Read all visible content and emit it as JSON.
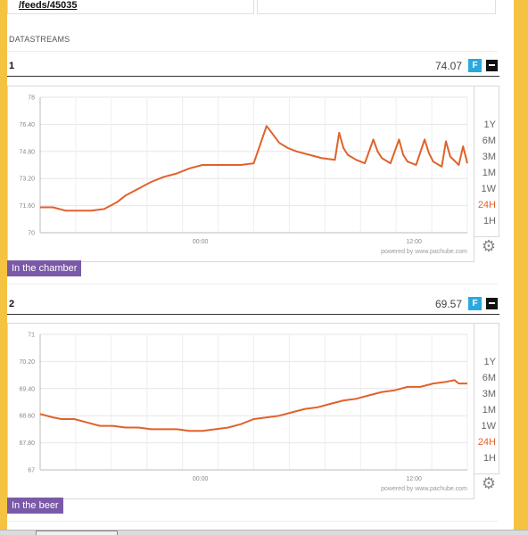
{
  "feed": {
    "link": "/feeds/45035"
  },
  "section_title": "DATASTREAMS",
  "range_options": [
    "1Y",
    "6M",
    "3M",
    "1M",
    "1W",
    "24H",
    "1H"
  ],
  "active_range": "24H",
  "powered_by": "powered by www.pachube.com",
  "f_label": "F",
  "datastreams": [
    {
      "id": "1",
      "value": "74.07",
      "tag": "In the chamber",
      "chart_data": {
        "type": "line",
        "y_ticks": [
          "78",
          "76.40",
          "74.80",
          "73.20",
          "71.60",
          "70"
        ],
        "ylim": [
          70,
          78
        ],
        "x_ticks": [
          {
            "label": "00:00",
            "x": 0.375
          },
          {
            "label": "12:00",
            "x": 0.875
          }
        ],
        "color": "#e0622b",
        "x": [
          0,
          0.03,
          0.06,
          0.09,
          0.12,
          0.15,
          0.18,
          0.2,
          0.23,
          0.26,
          0.29,
          0.32,
          0.35,
          0.38,
          0.41,
          0.44,
          0.47,
          0.5,
          0.53,
          0.545,
          0.56,
          0.58,
          0.6,
          0.63,
          0.66,
          0.69,
          0.7,
          0.71,
          0.72,
          0.74,
          0.76,
          0.78,
          0.79,
          0.8,
          0.82,
          0.84,
          0.85,
          0.86,
          0.88,
          0.9,
          0.91,
          0.92,
          0.94,
          0.95,
          0.96,
          0.98,
          0.99,
          1
        ],
        "y": [
          71.5,
          71.5,
          71.3,
          71.3,
          71.3,
          71.4,
          71.8,
          72.2,
          72.6,
          73.0,
          73.3,
          73.5,
          73.8,
          74.0,
          74.0,
          74.0,
          74.0,
          74.1,
          76.3,
          75.8,
          75.3,
          75.0,
          74.8,
          74.6,
          74.4,
          74.3,
          75.9,
          75.0,
          74.6,
          74.3,
          74.1,
          75.5,
          74.8,
          74.4,
          74.1,
          75.5,
          74.6,
          74.2,
          74.0,
          75.5,
          74.7,
          74.2,
          73.9,
          75.4,
          74.5,
          74.0,
          75.1,
          74.1
        ]
      }
    },
    {
      "id": "2",
      "value": "69.57",
      "tag": "In the beer",
      "chart_data": {
        "type": "line",
        "y_ticks": [
          "71",
          "70.20",
          "69.40",
          "68.60",
          "67.80",
          "67"
        ],
        "ylim": [
          67,
          71
        ],
        "x_ticks": [
          {
            "label": "00:00",
            "x": 0.375
          },
          {
            "label": "12:00",
            "x": 0.875
          }
        ],
        "color": "#e0622b",
        "x": [
          0,
          0.03,
          0.05,
          0.08,
          0.11,
          0.14,
          0.17,
          0.2,
          0.23,
          0.26,
          0.29,
          0.32,
          0.35,
          0.38,
          0.41,
          0.44,
          0.47,
          0.5,
          0.53,
          0.56,
          0.59,
          0.62,
          0.65,
          0.68,
          0.71,
          0.74,
          0.77,
          0.8,
          0.83,
          0.86,
          0.89,
          0.92,
          0.95,
          0.97,
          0.98,
          1
        ],
        "y": [
          68.65,
          68.55,
          68.5,
          68.5,
          68.4,
          68.3,
          68.3,
          68.25,
          68.25,
          68.2,
          68.2,
          68.2,
          68.15,
          68.15,
          68.2,
          68.25,
          68.35,
          68.5,
          68.55,
          68.6,
          68.7,
          68.8,
          68.85,
          68.95,
          69.05,
          69.1,
          69.2,
          69.3,
          69.35,
          69.45,
          69.45,
          69.55,
          69.6,
          69.65,
          69.55,
          69.55
        ]
      }
    }
  ]
}
